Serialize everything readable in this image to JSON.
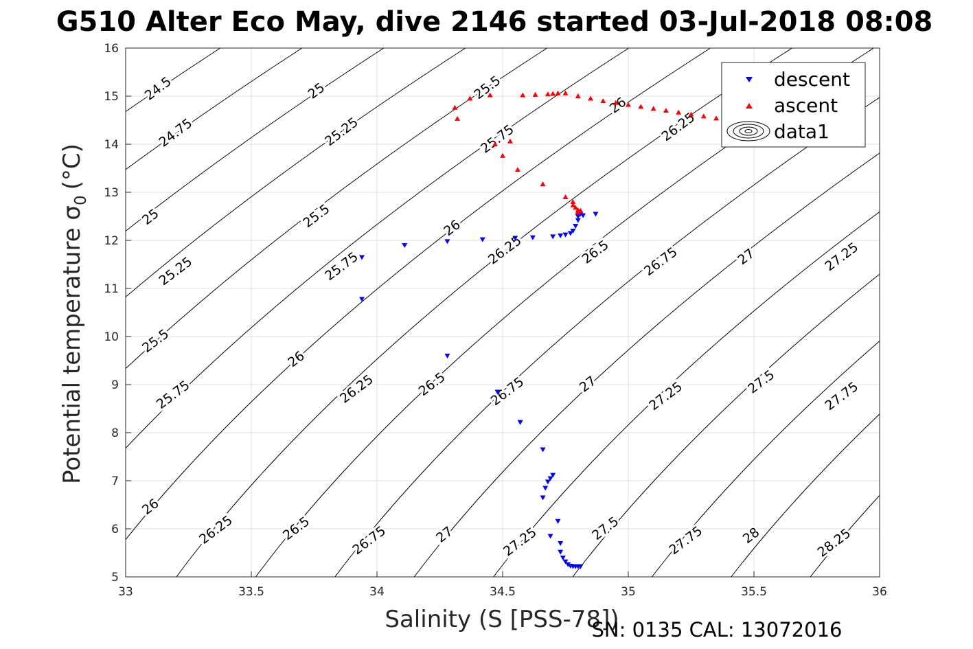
{
  "title": "G510 Alter Eco May, dive 2146 started 03-Jul-2018 08:08",
  "footer": "SN: 0135  CAL: 13072016",
  "colors": {
    "descent": "#0000ff",
    "ascent": "#ff0000",
    "contour": "#000000",
    "grid": "#dfdfdf"
  },
  "chart_data": {
    "type": "scatter",
    "xlabel": "Salinity (S [PSS-78])",
    "ylabel": "Potential temperature σ",
    "ylabel_sub": "0",
    "ylabel_unit": "(°C)",
    "xlim": [
      33,
      36
    ],
    "ylim": [
      5,
      16
    ],
    "xticks": [
      "33",
      "33.5",
      "34",
      "34.5",
      "35",
      "35.5",
      "36"
    ],
    "yticks": [
      "5",
      "6",
      "7",
      "8",
      "9",
      "10",
      "11",
      "12",
      "13",
      "14",
      "15",
      "16"
    ],
    "grid": true,
    "legend_position": "top-right",
    "series": [
      {
        "name": "descent",
        "marker": "triangle-down",
        "x": [
          33.94,
          33.94,
          34.11,
          34.28,
          34.28,
          34.42,
          34.48,
          34.55,
          34.57,
          34.62,
          34.66,
          34.7,
          34.73,
          34.75,
          34.77,
          34.78,
          34.79,
          34.8,
          34.8,
          34.81,
          34.82,
          34.87,
          34.48,
          34.57,
          34.66,
          34.67,
          34.68,
          34.69,
          34.7,
          34.72,
          34.69,
          34.73,
          34.73,
          34.74,
          34.75,
          34.76,
          34.77,
          34.78,
          34.79,
          34.8,
          34.81
        ],
        "y": [
          11.65,
          10.78,
          11.9,
          9.6,
          11.98,
          12.02,
          8.85,
          12.05,
          8.22,
          12.06,
          7.65,
          12.08,
          12.1,
          12.12,
          12.15,
          12.2,
          12.3,
          12.42,
          12.5,
          12.55,
          12.52,
          12.55,
          8.85,
          8.22,
          6.65,
          6.85,
          6.98,
          7.05,
          7.12,
          6.16,
          5.85,
          5.7,
          5.52,
          5.4,
          5.32,
          5.26,
          5.23,
          5.22,
          5.22,
          5.22,
          5.22
        ]
      },
      {
        "name": "ascent",
        "marker": "triangle-up",
        "x": [
          34.31,
          34.32,
          34.37,
          34.45,
          34.47,
          34.5,
          34.53,
          34.56,
          34.58,
          34.63,
          34.66,
          34.68,
          34.7,
          34.72,
          34.75,
          34.78,
          34.78,
          34.79,
          34.8,
          34.8,
          34.8,
          34.81,
          34.75,
          34.8,
          34.85,
          34.9,
          34.95,
          35.0,
          35.05,
          35.1,
          35.15,
          35.2,
          35.25,
          35.3,
          35.35,
          35.4,
          35.45,
          35.5,
          35.55,
          35.6
        ],
        "y": [
          14.76,
          14.53,
          14.95,
          15.02,
          14.0,
          13.76,
          14.06,
          13.47,
          15.02,
          15.03,
          13.17,
          15.04,
          15.05,
          15.06,
          12.9,
          12.8,
          12.73,
          12.68,
          12.63,
          12.6,
          12.58,
          12.62,
          15.06,
          15.0,
          14.95,
          14.9,
          14.86,
          14.82,
          14.78,
          14.74,
          14.7,
          14.66,
          14.62,
          14.58,
          14.54,
          14.5,
          14.46,
          14.42,
          14.38,
          14.34
        ]
      },
      {
        "name": "data1",
        "marker": "contour",
        "levels": [
          24.5,
          24.75,
          25,
          25.25,
          25.5,
          25.75,
          26,
          26.25,
          26.5,
          26.75,
          27,
          27.25,
          27.5,
          27.75,
          28,
          28.25
        ],
        "contour_labels": [
          {
            "text": "24.5",
            "x": 33.13,
            "y": 15.15
          },
          {
            "text": "24.75",
            "x": 33.2,
            "y": 14.23
          },
          {
            "text": "25",
            "x": 33.1,
            "y": 12.48
          },
          {
            "text": "25.25",
            "x": 33.2,
            "y": 11.35
          },
          {
            "text": "25.5",
            "x": 33.12,
            "y": 9.9
          },
          {
            "text": "25.75",
            "x": 33.19,
            "y": 8.78
          },
          {
            "text": "26",
            "x": 33.1,
            "y": 6.45
          },
          {
            "text": "26.25",
            "x": 33.36,
            "y": 5.97
          },
          {
            "text": "25",
            "x": 33.76,
            "y": 15.1
          },
          {
            "text": "25.25",
            "x": 33.86,
            "y": 14.25
          },
          {
            "text": "25.5",
            "x": 33.76,
            "y": 12.5
          },
          {
            "text": "25.75",
            "x": 33.86,
            "y": 11.45
          },
          {
            "text": "26",
            "x": 33.68,
            "y": 9.52
          },
          {
            "text": "26.25",
            "x": 33.92,
            "y": 8.9
          },
          {
            "text": "26.5",
            "x": 33.68,
            "y": 6.0
          },
          {
            "text": "26.75",
            "x": 33.97,
            "y": 5.75
          },
          {
            "text": "25.5",
            "x": 34.44,
            "y": 15.17
          },
          {
            "text": "25.75",
            "x": 34.48,
            "y": 14.1
          },
          {
            "text": "26",
            "x": 34.3,
            "y": 12.25
          },
          {
            "text": "26.25",
            "x": 34.51,
            "y": 11.79
          },
          {
            "text": "26.5",
            "x": 34.22,
            "y": 9.0
          },
          {
            "text": "26.75",
            "x": 34.52,
            "y": 8.85
          },
          {
            "text": "27",
            "x": 34.27,
            "y": 5.87
          },
          {
            "text": "27.25",
            "x": 34.57,
            "y": 5.72
          },
          {
            "text": "26",
            "x": 34.96,
            "y": 14.8
          },
          {
            "text": "26.25",
            "x": 35.2,
            "y": 14.35
          },
          {
            "text": "26.5",
            "x": 34.87,
            "y": 11.75
          },
          {
            "text": "26.75",
            "x": 35.13,
            "y": 11.55
          },
          {
            "text": "27",
            "x": 34.84,
            "y": 9.0
          },
          {
            "text": "27.25",
            "x": 35.15,
            "y": 8.75
          },
          {
            "text": "27.5",
            "x": 34.91,
            "y": 6.0
          },
          {
            "text": "27.75",
            "x": 35.23,
            "y": 5.75
          },
          {
            "text": "27",
            "x": 35.47,
            "y": 11.65
          },
          {
            "text": "27.25",
            "x": 35.85,
            "y": 11.65
          },
          {
            "text": "27.5",
            "x": 35.53,
            "y": 9.05
          },
          {
            "text": "27.75",
            "x": 35.85,
            "y": 8.75
          },
          {
            "text": "28",
            "x": 35.49,
            "y": 5.85
          },
          {
            "text": "28.25",
            "x": 35.82,
            "y": 5.7
          }
        ]
      }
    ]
  }
}
